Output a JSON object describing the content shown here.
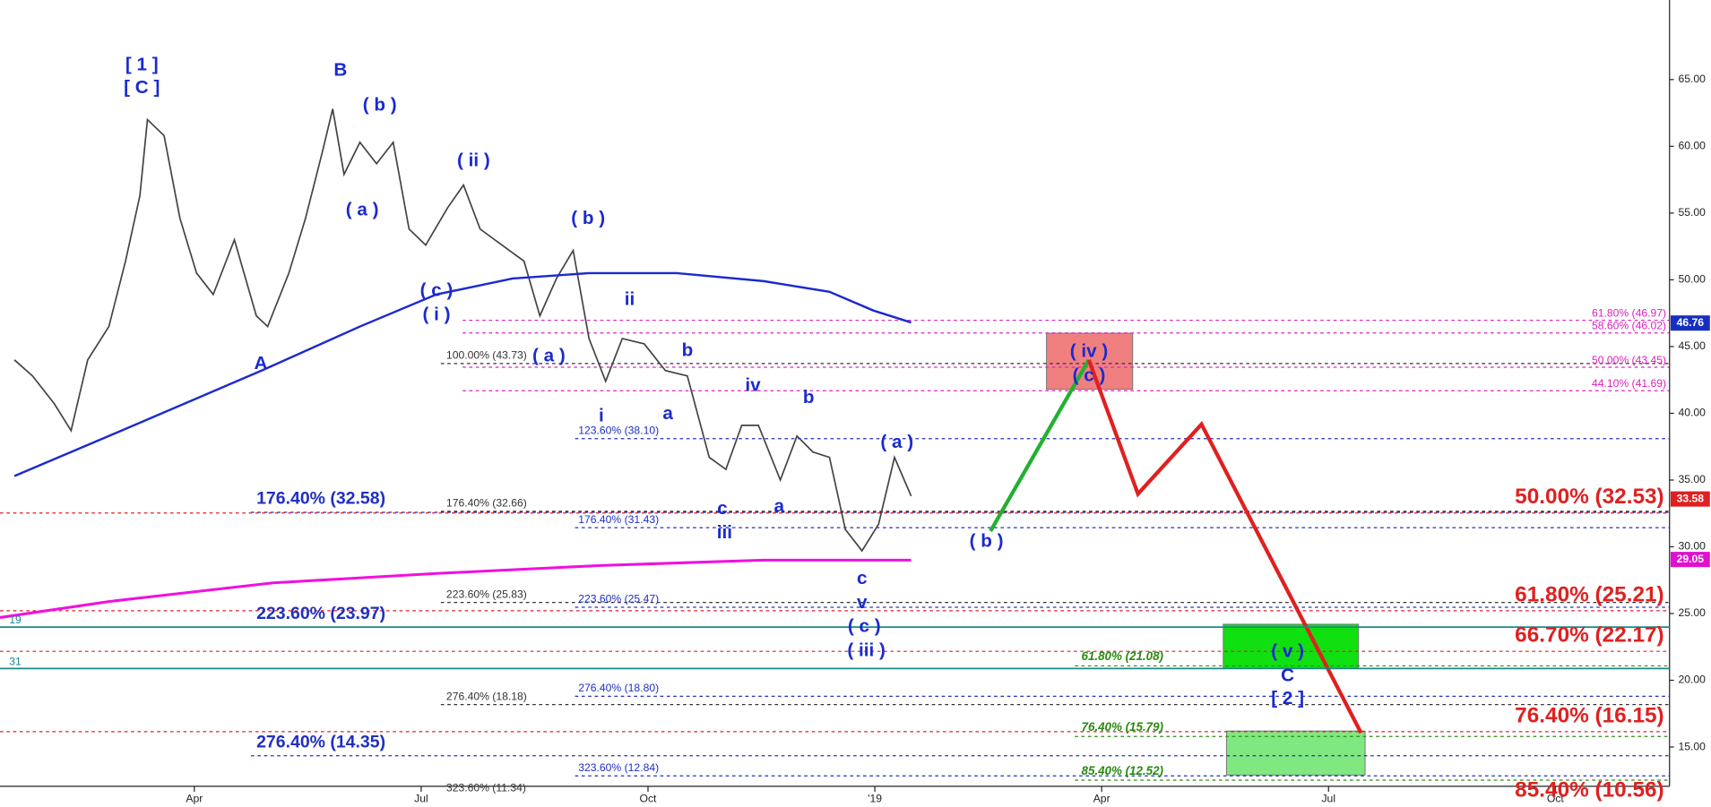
{
  "chart_data": {
    "type": "line",
    "xlim": [
      0.43,
      22.51
    ],
    "xticks": [
      {
        "value": 3,
        "label": "Apr"
      },
      {
        "value": 6,
        "label": "Jul"
      },
      {
        "value": 9,
        "label": "Oct"
      },
      {
        "value": 12,
        "label": "'19"
      },
      {
        "value": 15,
        "label": "Apr"
      },
      {
        "value": 18,
        "label": "Jul"
      },
      {
        "value": 21,
        "label": "Oct"
      }
    ],
    "ylim": [
      12.06,
      70.96
    ],
    "yticks": [
      {
        "value": 15,
        "label": "15.00"
      },
      {
        "value": 20,
        "label": "20.00"
      },
      {
        "value": 25,
        "label": "25.00"
      },
      {
        "value": 30,
        "label": "30.00"
      },
      {
        "value": 35,
        "label": "35.00"
      },
      {
        "value": 40,
        "label": "40.00"
      },
      {
        "value": 45,
        "label": "45.00"
      },
      {
        "value": 50,
        "label": "50.00"
      },
      {
        "value": 55,
        "label": "55.00"
      },
      {
        "value": 60,
        "label": "60.00"
      },
      {
        "value": 65,
        "label": "65.00"
      }
    ],
    "series": [
      {
        "color": "#444444",
        "x": [
          0.62,
          0.86,
          1.15,
          1.37,
          1.59,
          1.87,
          2.09,
          2.28,
          2.38,
          2.6,
          2.81,
          3.03,
          3.25,
          3.53,
          3.82,
          3.97,
          4.25,
          4.47,
          4.69,
          4.83,
          4.98,
          5.19,
          5.41,
          5.63,
          5.84,
          6.06,
          6.35,
          6.56,
          6.78,
          7.07,
          7.36,
          7.57,
          7.79,
          8.01,
          8.22,
          8.44,
          8.66,
          8.95,
          9.23,
          9.52,
          9.81,
          10.03,
          10.24,
          10.46,
          10.75,
          10.97,
          11.18,
          11.4,
          11.61,
          11.83,
          12.05,
          12.26,
          12.48
        ],
        "values": [
          44.0,
          42.8,
          40.7,
          38.7,
          44.0,
          46.5,
          51.4,
          56.3,
          62.0,
          60.8,
          54.6,
          50.5,
          48.9,
          53.0,
          47.3,
          46.5,
          50.5,
          54.6,
          59.5,
          62.8,
          57.9,
          60.3,
          58.7,
          60.3,
          53.8,
          52.6,
          55.4,
          57.1,
          53.8,
          52.6,
          51.4,
          47.3,
          50.1,
          52.2,
          45.6,
          42.4,
          45.6,
          45.2,
          43.2,
          42.8,
          36.7,
          35.8,
          39.1,
          39.1,
          35.0,
          38.3,
          37.1,
          36.7,
          31.3,
          29.7,
          31.7,
          36.7,
          33.8
        ]
      },
      {
        "color": "#1a2ad0",
        "x": [
          0.62,
          1.87,
          3.89,
          5.19,
          6.2,
          7.21,
          8.22,
          9.38,
          10.53,
          11.4,
          11.98,
          12.48
        ],
        "values": [
          35.3,
          38.3,
          43.2,
          46.5,
          48.9,
          50.1,
          50.5,
          50.5,
          49.9,
          49.1,
          47.7,
          46.8
        ]
      },
      {
        "color": "#f010e0",
        "x": [
          0.43,
          1.87,
          4.04,
          6.2,
          8.37,
          10.53,
          12.48
        ],
        "values": [
          24.7,
          25.9,
          27.3,
          28.0,
          28.6,
          29.0,
          29.0
        ]
      }
    ],
    "projections": [
      {
        "color": "#22b030",
        "x": [
          13.53,
          14.83
        ],
        "values": [
          31.18,
          44.0
        ]
      },
      {
        "color": "#e02020",
        "x": [
          14.83,
          15.48,
          16.32,
          18.43
        ],
        "values": [
          44.0,
          33.96,
          39.18,
          16.06
        ]
      }
    ],
    "zones": [
      {
        "color": "#f08080",
        "range": [
          41.8,
          46.0
        ]
      },
      {
        "color": "#10e010",
        "range": [
          20.9,
          24.2
        ]
      },
      {
        "color": "#80e880",
        "range": [
          12.9,
          16.2
        ]
      }
    ],
    "levels": [
      {
        "label": "61.80% (46.97)",
        "value": 46.97,
        "color": "#e020c0"
      },
      {
        "label": "58.60% (46.02)",
        "value": 46.02,
        "color": "#e020c0"
      },
      {
        "label": "100.00% (43.73)",
        "value": 43.73,
        "color": "#333333"
      },
      {
        "label": "50.00% (43.45)",
        "value": 43.45,
        "color": "#e020c0"
      },
      {
        "label": "44.10% (41.69)",
        "value": 41.69,
        "color": "#e020c0"
      },
      {
        "label": "123.60% (38.10)",
        "value": 38.1,
        "color": "#2030c0"
      },
      {
        "label": "176.40% (32.58)",
        "value": 32.58,
        "color": "#2030c0"
      },
      {
        "label": "176.40% (32.66)",
        "value": 32.66,
        "color": "#333333"
      },
      {
        "label": "50.00% (32.53)",
        "value": 32.53,
        "color": "#e02020"
      },
      {
        "label": "176.40% (31.43)",
        "value": 31.43,
        "color": "#2030c0"
      },
      {
        "label": "223.60% (25.83)",
        "value": 25.83,
        "color": "#333333"
      },
      {
        "label": "223.60% (25.47)",
        "value": 25.47,
        "color": "#2030c0"
      },
      {
        "label": "61.80% (25.21)",
        "value": 25.21,
        "color": "#e02020"
      },
      {
        "label": "223.60% (23.97)",
        "value": 23.97,
        "color": "#2030c0"
      },
      {
        "label": "66.70% (22.17)",
        "value": 22.17,
        "color": "#e02020"
      },
      {
        "label": "61.80% (21.08)",
        "value": 21.08,
        "color": "#2a8a10"
      },
      {
        "label": "276.40% (18.80)",
        "value": 18.8,
        "color": "#2030c0"
      },
      {
        "label": "276.40% (18.18)",
        "value": 18.18,
        "color": "#333333"
      },
      {
        "label": "76.40% (16.15)",
        "value": 16.15,
        "color": "#e02020"
      },
      {
        "label": "76.40% (15.79)",
        "value": 15.79,
        "color": "#2a8a10"
      },
      {
        "label": "276.40% (14.35)",
        "value": 14.35,
        "color": "#2030c0"
      },
      {
        "label": "323.60% (12.84)",
        "value": 12.84,
        "color": "#2030c0"
      },
      {
        "label": "85.40% (12.52)",
        "value": 12.52,
        "color": "#2a8a10"
      },
      {
        "label": "323.60% (11.34)",
        "value": 11.34,
        "color": "#333333"
      },
      {
        "label": "85.40% (10.56)",
        "value": 10.56,
        "color": "#e02020"
      }
    ],
    "price_tags": [
      {
        "value": 46.76,
        "color": "#1530c0"
      },
      {
        "value": 33.58,
        "color": "#e02020"
      },
      {
        "value": 29.05,
        "color": "#e010d0"
      }
    ],
    "wave_labels": [
      "[ 1 ]",
      "[ C ]",
      "B",
      "( b )",
      "( a )",
      "( ii )",
      "( b )",
      "( c )",
      "( i )",
      "A",
      "( a )",
      "ii",
      "b",
      "i",
      "a",
      "iv",
      "b",
      "( a )",
      "c",
      "iii",
      "a",
      "c",
      "v",
      "( c )",
      "( iii )",
      "( b )",
      "( iv )",
      "( c )",
      "( v )",
      "C",
      "[ 2 ]",
      "19",
      "31"
    ]
  }
}
